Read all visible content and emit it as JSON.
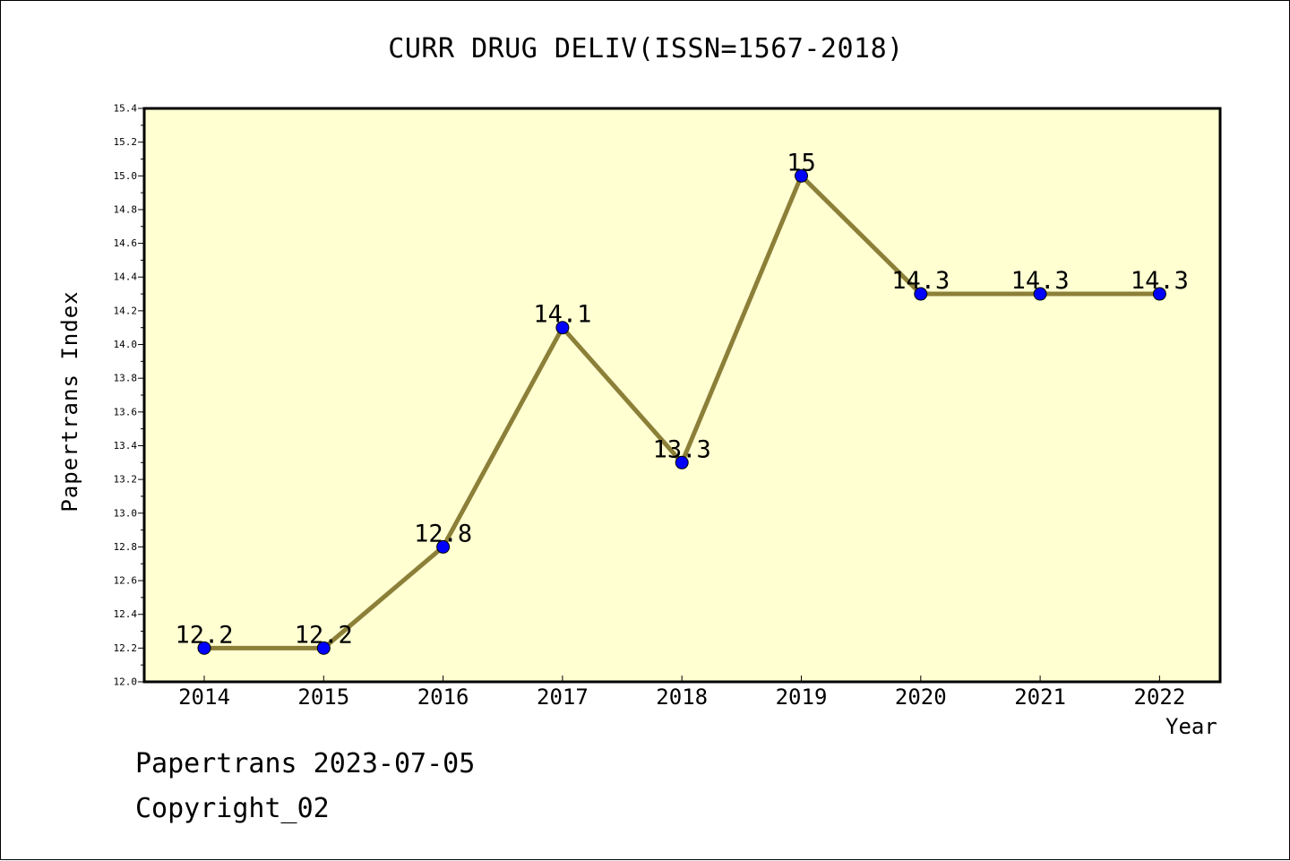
{
  "chart_data": {
    "type": "line",
    "title": "CURR DRUG DELIV(ISSN=1567-2018)",
    "xlabel": "Year",
    "ylabel": "Papertrans Index",
    "categories": [
      "2014",
      "2015",
      "2016",
      "2017",
      "2018",
      "2019",
      "2020",
      "2021",
      "2022"
    ],
    "series": [
      {
        "values": [
          12.2,
          12.2,
          12.8,
          14.1,
          13.3,
          15,
          14.3,
          14.3,
          14.3
        ],
        "data_labels": [
          "12.2",
          "12.2",
          "12.8",
          "14.1",
          "13.3",
          "15",
          "14.3",
          "14.3",
          "14.3"
        ]
      }
    ],
    "ylim": [
      12.0,
      15.4
    ],
    "yticks": [
      "12.0",
      "12.2",
      "12.4",
      "12.6",
      "12.8",
      "13.0",
      "13.2",
      "13.4",
      "13.6",
      "13.8",
      "14.0",
      "14.2",
      "14.4",
      "14.6",
      "14.8",
      "15.0",
      "15.2",
      "15.4"
    ],
    "grid": false,
    "plot_background": "#ffffd2",
    "line_color": "#8c7f38",
    "marker_color": "#0000ff"
  },
  "footer": {
    "date_text": "Papertrans 2023-07-05",
    "copyright_text": "Copyright_02"
  }
}
